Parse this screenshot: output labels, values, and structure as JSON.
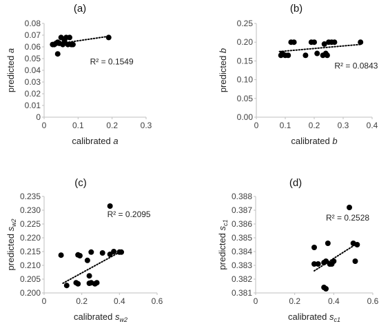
{
  "chart_data": [
    {
      "type": "scatter",
      "title": "(a)",
      "xlabel": "calibrated",
      "xlabel_var": "a",
      "xlabel_sub": "",
      "ylabel": "predicted",
      "ylabel_var": "a",
      "ylabel_sub": "",
      "xlim": [
        0,
        0.3
      ],
      "ylim": [
        0,
        0.08
      ],
      "xticks": [
        0,
        0.1,
        0.2,
        0.3
      ],
      "yticks": [
        0,
        0.01,
        0.02,
        0.03,
        0.04,
        0.05,
        0.06,
        0.07,
        0.08
      ],
      "xtick_labels": [
        "0",
        "0.1",
        "0.2",
        "0.3"
      ],
      "ytick_labels": [
        "0",
        "0.01",
        "0.02",
        "0.03",
        "0.04",
        "0.05",
        "0.06",
        "0.07",
        "0.08"
      ],
      "annotation": "R² = 0.1549",
      "annotation_pos": [
        0.135,
        0.045
      ],
      "trendline": [
        [
          0.025,
          0.062
        ],
        [
          0.19,
          0.069
        ]
      ],
      "points": [
        [
          0.025,
          0.062
        ],
        [
          0.03,
          0.062
        ],
        [
          0.035,
          0.063
        ],
        [
          0.04,
          0.064
        ],
        [
          0.04,
          0.054
        ],
        [
          0.045,
          0.063
        ],
        [
          0.05,
          0.068
        ],
        [
          0.055,
          0.062
        ],
        [
          0.06,
          0.065
        ],
        [
          0.065,
          0.068
        ],
        [
          0.07,
          0.062
        ],
        [
          0.075,
          0.068
        ],
        [
          0.08,
          0.062
        ],
        [
          0.085,
          0.062
        ],
        [
          0.19,
          0.068
        ]
      ]
    },
    {
      "type": "scatter",
      "title": "(b)",
      "xlabel": "calibrated",
      "xlabel_var": "b",
      "xlabel_sub": "",
      "ylabel": "predicted",
      "ylabel_var": "b",
      "ylabel_sub": "",
      "xlim": [
        0,
        0.4
      ],
      "ylim": [
        0,
        0.25
      ],
      "xticks": [
        0,
        0.1,
        0.2,
        0.3,
        0.4
      ],
      "yticks": [
        0,
        0.05,
        0.1,
        0.15,
        0.2,
        0.25
      ],
      "xtick_labels": [
        "0",
        "0.1",
        "0.2",
        "0.3",
        "0.4"
      ],
      "ytick_labels": [
        "0.00",
        "0.05",
        "0.10",
        "0.15",
        "0.20",
        "0.25"
      ],
      "annotation": "R² = 0.0843",
      "annotation_pos": [
        0.27,
        0.13
      ],
      "trendline": [
        [
          0.08,
          0.175
        ],
        [
          0.36,
          0.194
        ]
      ],
      "points": [
        [
          0.085,
          0.165
        ],
        [
          0.09,
          0.17
        ],
        [
          0.1,
          0.165
        ],
        [
          0.11,
          0.165
        ],
        [
          0.12,
          0.2
        ],
        [
          0.13,
          0.2
        ],
        [
          0.17,
          0.165
        ],
        [
          0.19,
          0.2
        ],
        [
          0.2,
          0.2
        ],
        [
          0.21,
          0.17
        ],
        [
          0.23,
          0.165
        ],
        [
          0.235,
          0.195
        ],
        [
          0.24,
          0.17
        ],
        [
          0.245,
          0.165
        ],
        [
          0.25,
          0.2
        ],
        [
          0.26,
          0.2
        ],
        [
          0.27,
          0.2
        ],
        [
          0.36,
          0.2
        ]
      ]
    },
    {
      "type": "scatter",
      "title": "(c)",
      "xlabel": "calibrated",
      "xlabel_var": "s",
      "xlabel_sub": "w2",
      "ylabel": "predicted",
      "ylabel_var": "s",
      "ylabel_sub": "w2",
      "xlim": [
        0,
        0.6
      ],
      "ylim": [
        0.2,
        0.235
      ],
      "xticks": [
        0,
        0.2,
        0.4,
        0.6
      ],
      "yticks": [
        0.2,
        0.205,
        0.21,
        0.215,
        0.22,
        0.225,
        0.23,
        0.235
      ],
      "xtick_labels": [
        "0",
        "0.2",
        "0.4",
        "0.6"
      ],
      "ytick_labels": [
        "0.200",
        "0.205",
        "0.210",
        "0.215",
        "0.220",
        "0.225",
        "0.230",
        "0.235"
      ],
      "annotation": "R² = 0.2095",
      "annotation_pos": [
        0.335,
        0.2275
      ],
      "trendline": [
        [
          0.1,
          0.2035
        ],
        [
          0.42,
          0.2155
        ]
      ],
      "points": [
        [
          0.09,
          0.2137
        ],
        [
          0.12,
          0.2027
        ],
        [
          0.17,
          0.2037
        ],
        [
          0.18,
          0.2033
        ],
        [
          0.18,
          0.2138
        ],
        [
          0.19,
          0.2135
        ],
        [
          0.23,
          0.2118
        ],
        [
          0.24,
          0.2035
        ],
        [
          0.24,
          0.2062
        ],
        [
          0.25,
          0.2037
        ],
        [
          0.25,
          0.2148
        ],
        [
          0.27,
          0.2033
        ],
        [
          0.28,
          0.2037
        ],
        [
          0.31,
          0.2145
        ],
        [
          0.35,
          0.2315
        ],
        [
          0.35,
          0.214
        ],
        [
          0.37,
          0.215
        ],
        [
          0.4,
          0.2148
        ],
        [
          0.41,
          0.2148
        ]
      ]
    },
    {
      "type": "scatter",
      "title": "(d)",
      "xlabel": "calibrated",
      "xlabel_var": "s",
      "xlabel_sub": "c1",
      "ylabel": "predicted",
      "ylabel_var": "s",
      "ylabel_sub": "c1",
      "xlim": [
        0,
        0.6
      ],
      "ylim": [
        0.381,
        0.388
      ],
      "xticks": [
        0,
        0.2,
        0.4,
        0.6
      ],
      "yticks": [
        0.381,
        0.382,
        0.383,
        0.384,
        0.385,
        0.386,
        0.387,
        0.388
      ],
      "xtick_labels": [
        "0",
        "0.2",
        "0.4",
        "0.6"
      ],
      "ytick_labels": [
        "0.381",
        "0.382",
        "0.383",
        "0.384",
        "0.385",
        "0.386",
        "0.387",
        "0.388"
      ],
      "annotation": "R² = 0.2528",
      "annotation_pos": [
        0.36,
        0.38625
      ],
      "trendline": [
        [
          0.3,
          0.3826
        ],
        [
          0.51,
          0.3845
        ]
      ],
      "points": [
        [
          0.3,
          0.3843
        ],
        [
          0.3,
          0.3831
        ],
        [
          0.32,
          0.3831
        ],
        [
          0.35,
          0.3832
        ],
        [
          0.35,
          0.3814
        ],
        [
          0.36,
          0.3813
        ],
        [
          0.36,
          0.3833
        ],
        [
          0.37,
          0.3846
        ],
        [
          0.38,
          0.3831
        ],
        [
          0.38,
          0.3831
        ],
        [
          0.39,
          0.3831
        ],
        [
          0.4,
          0.3833
        ],
        [
          0.48,
          0.3872
        ],
        [
          0.5,
          0.3846
        ],
        [
          0.51,
          0.3833
        ],
        [
          0.52,
          0.3845
        ]
      ]
    }
  ]
}
